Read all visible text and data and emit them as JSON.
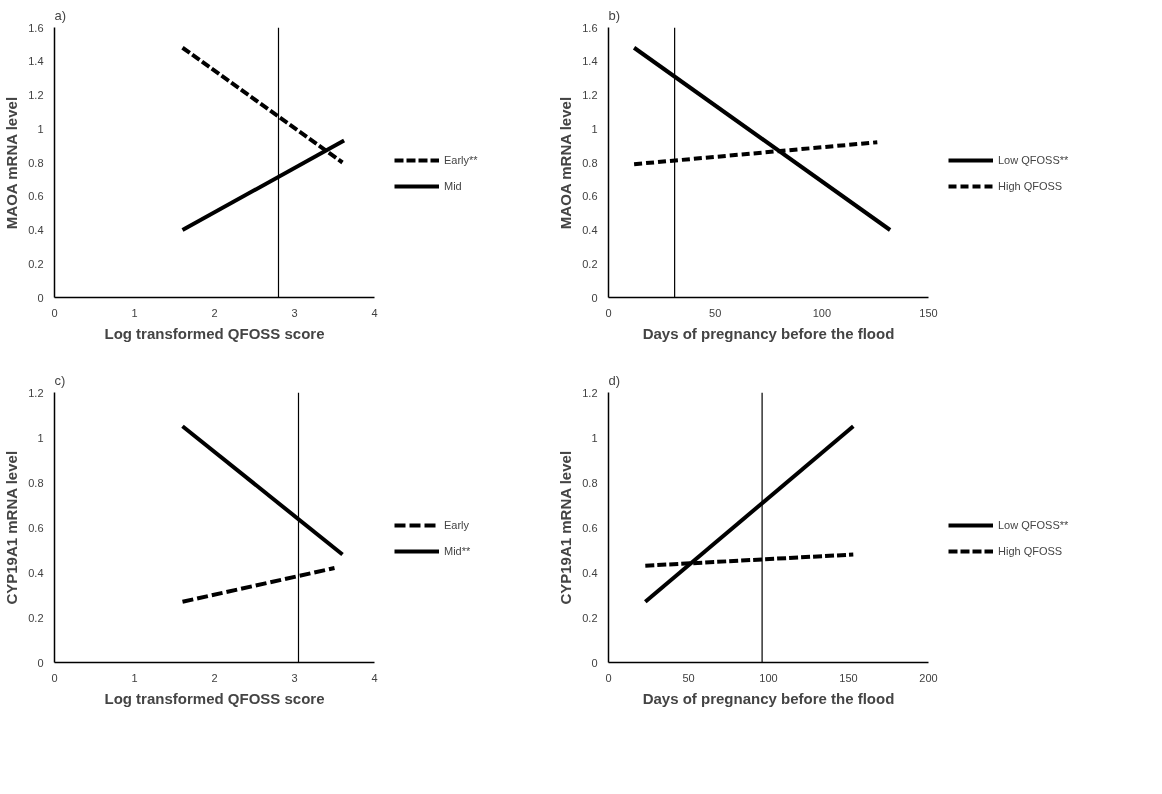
{
  "chart_data": [
    {
      "type": "line",
      "title": "a)",
      "xlabel": "Log transformed QFOSS score",
      "ylabel": "MAOA mRNA level",
      "xlim": [
        0,
        4
      ],
      "xticks": [
        0,
        1,
        2,
        3,
        4
      ],
      "ylim": [
        0,
        1.6
      ],
      "yticks": [
        0,
        0.2,
        0.4,
        0.6,
        0.8,
        1,
        1.2,
        1.4,
        1.6
      ],
      "grid": false,
      "legend": "right",
      "series": [
        {
          "name": "Early**",
          "color": "#000000",
          "line_style": "dashed",
          "x": [
            1.6,
            3.6
          ],
          "values": [
            1.48,
            0.8
          ]
        },
        {
          "name": "Mid",
          "color": "#000000",
          "line_style": "solid",
          "x": [
            1.6,
            3.62
          ],
          "values": [
            0.4,
            0.93
          ]
        }
      ],
      "ref_lines": [
        {
          "axis": "x",
          "value": 2.8,
          "color": "#000000"
        }
      ]
    },
    {
      "type": "line",
      "title": "b)",
      "xlabel": "Days of pregnancy before the flood",
      "ylabel": "MAOA mRNA level",
      "xlim": [
        0,
        150
      ],
      "xticks": [
        0,
        50,
        100,
        150
      ],
      "ylim": [
        0,
        1.6
      ],
      "yticks": [
        0,
        0.2,
        0.4,
        0.6,
        0.8,
        1,
        1.2,
        1.4,
        1.6
      ],
      "grid": false,
      "legend": "right",
      "series": [
        {
          "name": "Low QFOSS**",
          "color": "#000000",
          "line_style": "solid",
          "x": [
            12,
            132
          ],
          "values": [
            1.48,
            0.4
          ]
        },
        {
          "name": "High QFOSS",
          "color": "#000000",
          "line_style": "dashed",
          "x": [
            12,
            126
          ],
          "values": [
            0.79,
            0.92
          ]
        }
      ],
      "ref_lines": [
        {
          "axis": "x",
          "value": 31,
          "color": "#000000"
        }
      ]
    },
    {
      "type": "line",
      "title": "c)",
      "xlabel": "Log transformed QFOSS score",
      "ylabel": "CYP19A1 mRNA level",
      "xlim": [
        0,
        4
      ],
      "xticks": [
        0,
        1,
        2,
        3,
        4
      ],
      "ylim": [
        0,
        1.2
      ],
      "yticks": [
        0,
        0.2,
        0.4,
        0.6,
        0.8,
        1,
        1.2
      ],
      "grid": false,
      "legend": "right",
      "series": [
        {
          "name": "Early",
          "color": "#000000",
          "line_style": "dashed",
          "x": [
            1.6,
            3.5
          ],
          "values": [
            0.27,
            0.42
          ]
        },
        {
          "name": "Mid**",
          "color": "#000000",
          "line_style": "solid",
          "x": [
            1.6,
            3.6
          ],
          "values": [
            1.05,
            0.48
          ]
        }
      ],
      "ref_lines": [
        {
          "axis": "x",
          "value": 3.05,
          "color": "#000000"
        }
      ]
    },
    {
      "type": "line",
      "title": "d)",
      "xlabel": "Days of pregnancy before the flood",
      "ylabel": "CYP19A1 mRNA level",
      "xlim": [
        0,
        200
      ],
      "xticks": [
        0,
        50,
        100,
        150,
        200
      ],
      "ylim": [
        0,
        1.2
      ],
      "yticks": [
        0,
        0.2,
        0.4,
        0.6,
        0.8,
        1,
        1.2
      ],
      "grid": false,
      "legend": "right",
      "series": [
        {
          "name": "Low QFOSS**",
          "color": "#000000",
          "line_style": "solid",
          "x": [
            23,
            153
          ],
          "values": [
            0.27,
            1.05
          ]
        },
        {
          "name": "High QFOSS",
          "color": "#000000",
          "line_style": "dashed",
          "x": [
            23,
            153
          ],
          "values": [
            0.43,
            0.48
          ]
        }
      ],
      "ref_lines": [
        {
          "axis": "x",
          "value": 96,
          "color": "#000000"
        }
      ]
    }
  ]
}
